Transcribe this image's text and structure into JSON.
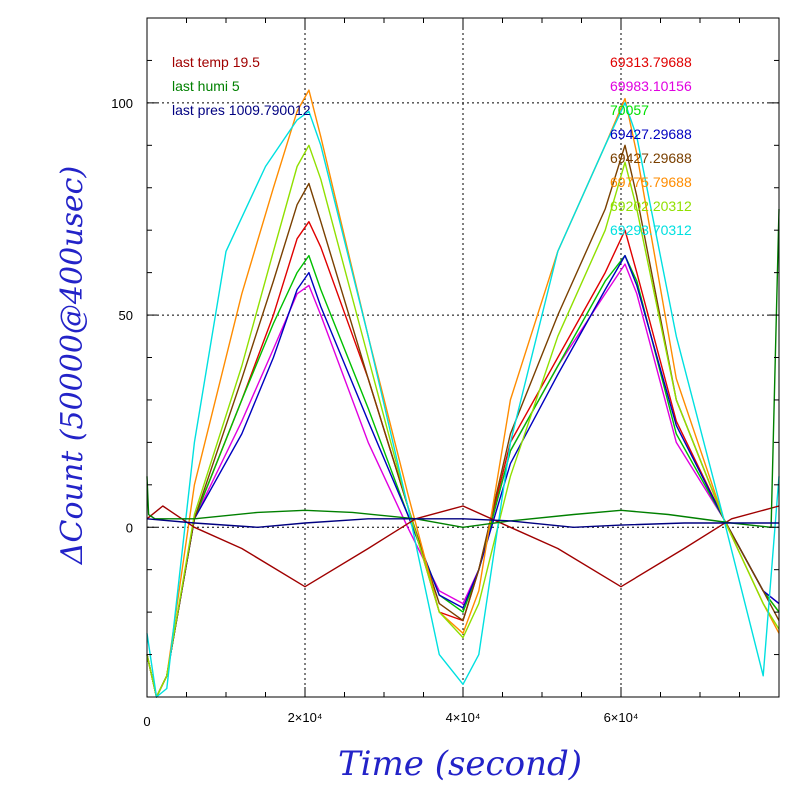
{
  "chart_data": {
    "type": "line",
    "xlabel": "Time (second)",
    "ylabel": "ΔCount (50000@400usec)",
    "xlim": [
      0,
      80000
    ],
    "ylim": [
      -40,
      120
    ],
    "x_ticks": [
      {
        "value": 0,
        "label": "0"
      },
      {
        "value": 20000,
        "label": "2×10⁴"
      },
      {
        "value": 40000,
        "label": "4×10⁴"
      },
      {
        "value": 60000,
        "label": "6×10⁴"
      }
    ],
    "y_ticks": [
      {
        "value": 0,
        "label": "0"
      },
      {
        "value": 50,
        "label": "50"
      },
      {
        "value": 100,
        "label": "100"
      }
    ],
    "grid": "dotted at major ticks",
    "legend_left": [
      {
        "text": "last temp 19.5",
        "color": "#a00000"
      },
      {
        "text": "last humi 5",
        "color": "#008000"
      },
      {
        "text": "last pres 1009.790012",
        "color": "#000080"
      }
    ],
    "legend_right": [
      {
        "text": "69313.79688",
        "color": "#e00000"
      },
      {
        "text": "69983.10156",
        "color": "#e000e0"
      },
      {
        "text": "70057",
        "color": "#00e000"
      },
      {
        "text": "69427.29688",
        "color": "#0000c0"
      },
      {
        "text": "69427.29688",
        "color": "#7a4000"
      },
      {
        "text": "69775.79688",
        "color": "#ff8c00"
      },
      {
        "text": "69202.20312",
        "color": "#90e000"
      },
      {
        "text": "69293.70312",
        "color": "#00e0e0"
      }
    ],
    "series": [
      {
        "color": "#e00000",
        "x": [
          0,
          1200,
          2500,
          6000,
          12000,
          16000,
          19000,
          20500,
          22000,
          28000,
          33000,
          37000,
          40000,
          42000,
          46000,
          52000,
          58000,
          60500,
          62000,
          67000,
          73000,
          78000,
          80000
        ],
        "y": [
          -30,
          -40,
          -35,
          2,
          30,
          50,
          68,
          72,
          66,
          35,
          5,
          -20,
          -22,
          -10,
          20,
          40,
          60,
          70,
          60,
          25,
          2,
          -15,
          -20
        ]
      },
      {
        "color": "#e000e0",
        "x": [
          0,
          1200,
          2500,
          6000,
          12000,
          16000,
          19000,
          20500,
          22000,
          28000,
          33000,
          37000,
          40000,
          42000,
          46000,
          52000,
          58000,
          60500,
          62000,
          67000,
          73000,
          78000,
          80000
        ],
        "y": [
          -30,
          -40,
          -35,
          2,
          25,
          42,
          55,
          57,
          50,
          20,
          0,
          -15,
          -18,
          -10,
          18,
          38,
          55,
          62,
          55,
          20,
          2,
          -15,
          -18
        ]
      },
      {
        "color": "#00c000",
        "x": [
          0,
          1200,
          2500,
          6000,
          12000,
          16000,
          19000,
          20500,
          22000,
          28000,
          33000,
          37000,
          40000,
          42000,
          46000,
          52000,
          58000,
          60500,
          62000,
          67000,
          73000,
          78000,
          80000
        ],
        "y": [
          -30,
          -40,
          -35,
          2,
          30,
          48,
          60,
          64,
          56,
          28,
          3,
          -16,
          -20,
          -10,
          18,
          38,
          58,
          64,
          58,
          22,
          2,
          -15,
          -20
        ]
      },
      {
        "color": "#0000c0",
        "x": [
          0,
          1200,
          2500,
          6000,
          12000,
          16000,
          19000,
          20500,
          22000,
          28000,
          33000,
          37000,
          40000,
          42000,
          46000,
          52000,
          58000,
          60500,
          62000,
          67000,
          73000,
          78000,
          80000
        ],
        "y": [
          -30,
          -40,
          -35,
          2,
          22,
          40,
          56,
          60,
          52,
          25,
          3,
          -16,
          -19,
          -10,
          15,
          36,
          56,
          64,
          57,
          24,
          2,
          -15,
          -18
        ]
      },
      {
        "color": "#7a4000",
        "x": [
          0,
          1200,
          2500,
          6000,
          12000,
          16000,
          19000,
          20500,
          22000,
          28000,
          33000,
          37000,
          40000,
          42000,
          46000,
          52000,
          58000,
          60500,
          62000,
          67000,
          73000,
          78000,
          80000
        ],
        "y": [
          -30,
          -40,
          -35,
          2,
          35,
          58,
          76,
          81,
          72,
          35,
          5,
          -18,
          -22,
          -10,
          22,
          50,
          75,
          90,
          78,
          30,
          2,
          -15,
          -22
        ]
      },
      {
        "color": "#ff8c00",
        "x": [
          0,
          1200,
          2500,
          6000,
          12000,
          16000,
          19000,
          20500,
          22000,
          28000,
          33000,
          37000,
          40000,
          42000,
          46000,
          52000,
          58000,
          60500,
          62000,
          67000,
          73000,
          78000,
          80000
        ],
        "y": [
          -30,
          -40,
          -35,
          10,
          55,
          80,
          98,
          103,
          92,
          45,
          8,
          -20,
          -25,
          -15,
          30,
          65,
          90,
          101,
          88,
          35,
          2,
          -18,
          -25
        ]
      },
      {
        "color": "#90e000",
        "x": [
          0,
          1200,
          2500,
          6000,
          12000,
          16000,
          19000,
          20500,
          22000,
          28000,
          33000,
          37000,
          40000,
          42000,
          46000,
          52000,
          58000,
          60500,
          62000,
          67000,
          73000,
          78000,
          80000
        ],
        "y": [
          -30,
          -40,
          -35,
          3,
          38,
          65,
          85,
          90,
          82,
          40,
          5,
          -20,
          -26,
          -18,
          12,
          45,
          70,
          86,
          75,
          30,
          2,
          -18,
          -24
        ]
      },
      {
        "color": "#00e0e0",
        "x": [
          0,
          1200,
          2500,
          6000,
          10000,
          15000,
          19000,
          20500,
          22000,
          28000,
          33000,
          37000,
          40000,
          42000,
          46000,
          52000,
          58000,
          60500,
          62000,
          67000,
          73000,
          78000,
          80000
        ],
        "y": [
          -25,
          -40,
          -38,
          20,
          65,
          85,
          96,
          98,
          90,
          45,
          5,
          -30,
          -37,
          -30,
          20,
          65,
          90,
          100,
          92,
          45,
          2,
          -35,
          12
        ]
      },
      {
        "color": "#a00000",
        "x": [
          0,
          2000,
          6000,
          12000,
          20000,
          28000,
          34000,
          40000,
          46000,
          52000,
          60000,
          68000,
          74000,
          80000
        ],
        "y": [
          2,
          5,
          0,
          -5,
          -14,
          -5,
          2,
          5,
          0,
          -5,
          -14,
          -5,
          2,
          5
        ]
      },
      {
        "color": "#008000",
        "x": [
          0,
          200,
          1000,
          6000,
          14000,
          20000,
          26000,
          34000,
          40000,
          46000,
          54000,
          60000,
          66000,
          74000,
          79000,
          80000
        ],
        "y": [
          12,
          3,
          2,
          2,
          3.5,
          4,
          3.5,
          2,
          0,
          1.5,
          3,
          4,
          3,
          1,
          0,
          75
        ]
      },
      {
        "color": "#000080",
        "x": [
          0,
          6000,
          14000,
          20000,
          28000,
          34000,
          40000,
          46000,
          54000,
          60000,
          68000,
          74000,
          80000
        ],
        "y": [
          2,
          1,
          0,
          1,
          2,
          2,
          2,
          1.5,
          0,
          0.5,
          1,
          1,
          1
        ]
      }
    ]
  }
}
